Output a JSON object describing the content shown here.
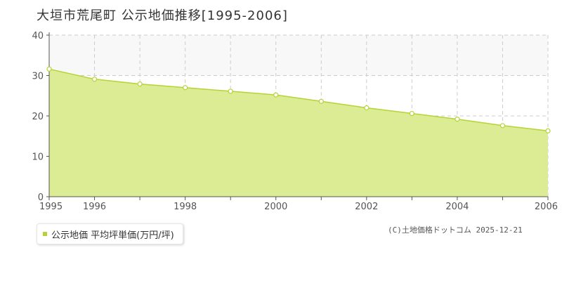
{
  "title": "大垣市荒尾町 公示地価推移[1995-2006]",
  "legend": {
    "label": "公示地価 平均坪単価(万円/坪)"
  },
  "credit": "(C)土地価格ドットコム 2025-12-21",
  "colors": {
    "fill": "#dcec94",
    "line": "#b5d334",
    "marker_fill": "#ffffff",
    "grid": "#cccccc",
    "axis": "#555555",
    "upper_band": "#f8f8f8"
  },
  "chart_data": {
    "type": "area",
    "title": "大垣市荒尾町 公示地価推移[1995-2006]",
    "xlabel": "",
    "ylabel": "",
    "x": [
      1995,
      1996,
      1997,
      1998,
      1999,
      2000,
      2001,
      2002,
      2003,
      2004,
      2005,
      2006
    ],
    "series": [
      {
        "name": "公示地価 平均坪単価(万円/坪)",
        "values": [
          31.6,
          29.1,
          27.9,
          27.0,
          26.1,
          25.2,
          23.6,
          22.0,
          20.6,
          19.2,
          17.6,
          16.3
        ]
      }
    ],
    "xlim": [
      1995,
      2006
    ],
    "ylim": [
      0,
      40
    ],
    "x_ticks": [
      "1995",
      "1996",
      "1998",
      "2000",
      "2002",
      "2004",
      "2006"
    ],
    "y_ticks": [
      "0",
      "10",
      "20",
      "30",
      "40"
    ],
    "grid": true,
    "legend_position": "bottom-left"
  }
}
